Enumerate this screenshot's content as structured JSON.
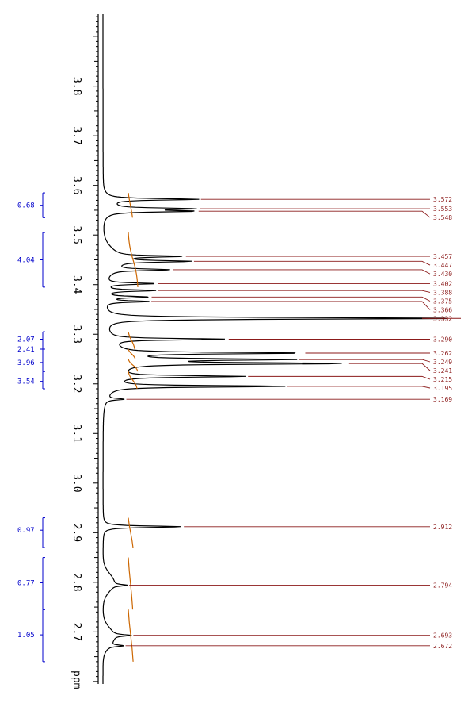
{
  "chart_data": {
    "type": "line",
    "xlabel": "ppm",
    "xlim": [
      3.945,
      2.595
    ],
    "axis_ticks": [
      "3.8",
      "3.7",
      "3.6",
      "3.5",
      "3.4",
      "3.3",
      "3.2",
      "3.1",
      "3.0",
      "2.9",
      "2.8",
      "2.7"
    ],
    "integrals": [
      {
        "label": "0.68",
        "from": 3.585,
        "to": 3.535,
        "center": 3.56
      },
      {
        "label": "4.04",
        "from": 3.505,
        "to": 3.395,
        "center": 3.45
      },
      {
        "label": "2.07",
        "from": 3.305,
        "to": 3.27,
        "center": 3.29
      },
      {
        "label": "2.41",
        "from": 3.27,
        "to": 3.25,
        "center": 3.27
      },
      {
        "label": "3.96",
        "from": 3.25,
        "to": 3.225,
        "center": 3.243
      },
      {
        "label": "3.54",
        "from": 3.225,
        "to": 3.19,
        "center": 3.205
      },
      {
        "label": "0.97",
        "from": 2.93,
        "to": 2.87,
        "center": 2.905
      },
      {
        "label": "0.77",
        "from": 2.85,
        "to": 2.745,
        "center": 2.799
      },
      {
        "label": "1.05",
        "from": 2.745,
        "to": 2.64,
        "center": 2.694
      }
    ],
    "peaks": [
      {
        "label": "3.572",
        "ppm": 3.572,
        "height": 0.25
      },
      {
        "label": "3.553",
        "ppm": 3.553,
        "height": 0.22
      },
      {
        "label": "3.548",
        "ppm": 3.548,
        "height": 0.22
      },
      {
        "label": "3.457",
        "ppm": 3.457,
        "height": 0.18
      },
      {
        "label": "3.447",
        "ppm": 3.447,
        "height": 0.2
      },
      {
        "label": "3.430",
        "ppm": 3.43,
        "height": 0.16
      },
      {
        "label": "3.402",
        "ppm": 3.402,
        "height": 0.14
      },
      {
        "label": "3.388",
        "ppm": 3.388,
        "height": 0.14
      },
      {
        "label": "3.375",
        "ppm": 3.375,
        "height": 0.12
      },
      {
        "label": "3.366",
        "ppm": 3.366,
        "height": 0.12
      },
      {
        "label": "3.332",
        "ppm": 3.332,
        "height": 1.0
      },
      {
        "label": "3.290",
        "ppm": 3.29,
        "height": 0.32
      },
      {
        "label": "3.262",
        "ppm": 3.262,
        "height": 0.5
      },
      {
        "label": "3.249",
        "ppm": 3.249,
        "height": 0.45
      },
      {
        "label": "3.241",
        "ppm": 3.241,
        "height": 0.6
      },
      {
        "label": "3.215",
        "ppm": 3.215,
        "height": 0.35
      },
      {
        "label": "3.195",
        "ppm": 3.195,
        "height": 0.48
      },
      {
        "label": "3.169",
        "ppm": 3.169,
        "height": 0.05
      },
      {
        "label": "2.912",
        "ppm": 2.912,
        "height": 0.22
      },
      {
        "label": "2.794",
        "ppm": 2.794,
        "height": 0.04
      },
      {
        "label": "2.693",
        "ppm": 2.693,
        "height": 0.05
      },
      {
        "label": "2.672",
        "ppm": 2.672,
        "height": 0.04
      }
    ]
  }
}
